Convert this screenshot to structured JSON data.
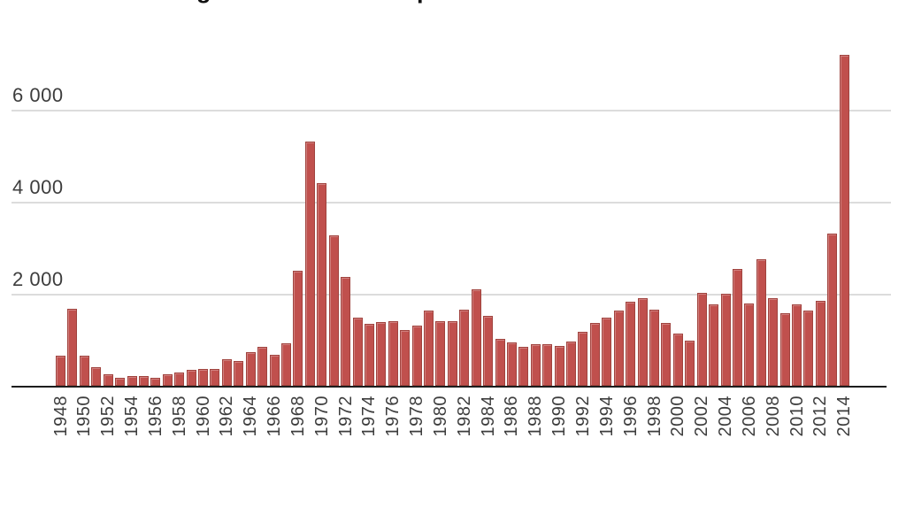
{
  "page": {
    "background": "#ffffff",
    "clipped_title": {
      "note": "chart title is cropped at top edge; only descender fragments of letters are visible",
      "fragments": [
        {
          "glyph": "g",
          "x": 222
        },
        {
          "glyph": "p",
          "x": 471
        }
      ]
    }
  },
  "chart_data": {
    "type": "bar",
    "title": "",
    "x": [
      1948,
      1949,
      1950,
      1951,
      1952,
      1953,
      1954,
      1955,
      1956,
      1957,
      1958,
      1959,
      1960,
      1961,
      1962,
      1963,
      1964,
      1965,
      1966,
      1967,
      1968,
      1969,
      1970,
      1971,
      1972,
      1973,
      1974,
      1975,
      1976,
      1977,
      1978,
      1979,
      1980,
      1981,
      1982,
      1983,
      1984,
      1985,
      1986,
      1987,
      1988,
      1989,
      1990,
      1991,
      1992,
      1993,
      1994,
      1995,
      1996,
      1997,
      1998,
      1999,
      2000,
      2001,
      2002,
      2003,
      2004,
      2005,
      2006,
      2007,
      2008,
      2009,
      2010,
      2011,
      2012,
      2013,
      2014
    ],
    "values": [
      650,
      1670,
      660,
      400,
      250,
      170,
      210,
      210,
      170,
      250,
      290,
      340,
      360,
      370,
      570,
      530,
      725,
      840,
      680,
      920,
      2500,
      5300,
      4400,
      3270,
      2360,
      1480,
      1350,
      1380,
      1400,
      1210,
      1300,
      1640,
      1400,
      1400,
      1660,
      2100,
      1510,
      1010,
      940,
      850,
      900,
      900,
      860,
      970,
      1170,
      1360,
      1490,
      1630,
      1830,
      1910,
      1650,
      1360,
      1140,
      990,
      2020,
      1760,
      2000,
      2530,
      1780,
      2750,
      1910,
      1580,
      1760,
      1630,
      1850,
      3300,
      7200
    ],
    "x_tick_labels": [
      "1948",
      "1950",
      "1952",
      "1954",
      "1956",
      "1958",
      "1960",
      "1962",
      "1964",
      "1966",
      "1968",
      "1970",
      "1972",
      "1974",
      "1976",
      "1978",
      "1980",
      "1982",
      "1984",
      "1986",
      "1988",
      "1990",
      "1992",
      "1994",
      "1996",
      "1998",
      "2000",
      "2002",
      "2004",
      "2006",
      "2008",
      "2010",
      "2012",
      "2014"
    ],
    "y_ticks": [
      2000,
      4000,
      6000
    ],
    "y_tick_labels": [
      "2 000",
      "4 000",
      "6 000"
    ],
    "ylim": [
      0,
      7500
    ],
    "grid": "horizontal",
    "legend": "none",
    "xlabel": "",
    "ylabel": "",
    "colors": {
      "bar_fill": "#c0504d",
      "bar_border": "#a0433e",
      "gridline": "#dcdcdc",
      "axis_line": "#1d1d1d",
      "tick_label": "#3d3d3d"
    }
  }
}
